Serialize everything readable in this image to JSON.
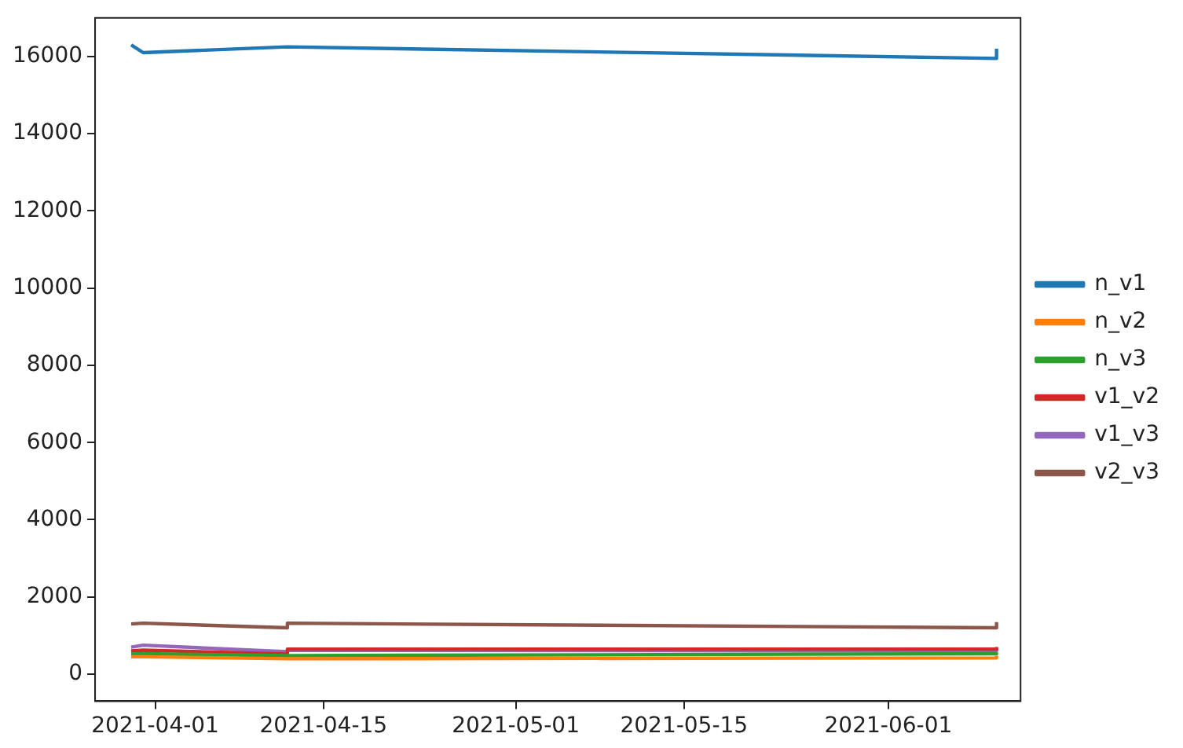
{
  "chart_data": {
    "type": "line",
    "xlim": [
      "2021-03-27",
      "2021-06-12"
    ],
    "xticks": [
      "2021-04-01",
      "2021-04-15",
      "2021-05-01",
      "2021-05-15",
      "2021-06-01"
    ],
    "ylim": [
      -700,
      17000
    ],
    "yticks": [
      0,
      2000,
      4000,
      6000,
      8000,
      10000,
      12000,
      14000,
      16000
    ],
    "grid": false,
    "legend": "right",
    "marker": "none",
    "line_style": "solid",
    "series": [
      {
        "name": "n_v1",
        "color": "#1f77b4",
        "x": [
          "2021-03-30",
          "2021-03-31",
          "2021-04-12",
          "2021-06-10",
          "2021-06-10"
        ],
        "values": [
          16300,
          16100,
          16250,
          15950,
          16200
        ]
      },
      {
        "name": "n_v2",
        "color": "#ff7f0e",
        "x": [
          "2021-03-30",
          "2021-03-31",
          "2021-04-12",
          "2021-06-10",
          "2021-06-10"
        ],
        "values": [
          450,
          450,
          400,
          420,
          480
        ]
      },
      {
        "name": "n_v3",
        "color": "#2ca02c",
        "x": [
          "2021-03-30",
          "2021-03-31",
          "2021-04-12",
          "2021-06-10",
          "2021-06-10"
        ],
        "values": [
          520,
          530,
          480,
          530,
          560
        ]
      },
      {
        "name": "v1_v2",
        "color": "#d62728",
        "x": [
          "2021-03-30",
          "2021-03-31",
          "2021-04-12",
          "2021-04-12",
          "2021-06-10",
          "2021-06-10"
        ],
        "values": [
          600,
          620,
          520,
          650,
          650,
          700
        ]
      },
      {
        "name": "v1_v3",
        "color": "#9467bd",
        "x": [
          "2021-03-30",
          "2021-03-31",
          "2021-04-12",
          "2021-04-12",
          "2021-06-10",
          "2021-06-10"
        ],
        "values": [
          700,
          750,
          580,
          620,
          600,
          650
        ]
      },
      {
        "name": "v2_v3",
        "color": "#8c564b",
        "x": [
          "2021-03-30",
          "2021-03-31",
          "2021-04-12",
          "2021-04-12",
          "2021-06-10",
          "2021-06-10"
        ],
        "values": [
          1300,
          1320,
          1200,
          1320,
          1200,
          1350
        ]
      }
    ]
  }
}
